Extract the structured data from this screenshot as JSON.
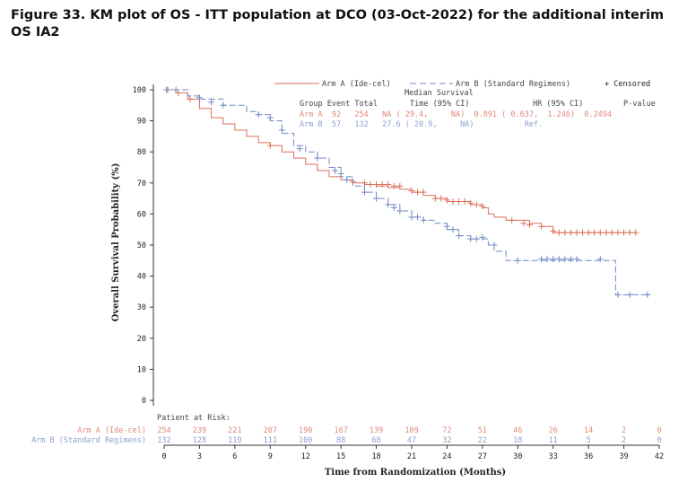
{
  "figure_title": "Figure 33. KM plot of OS - ITT population at DCO (03-Oct-2022) for the additional interim OS IA2",
  "colors": {
    "arm_a": "#d9705a",
    "arm_b": "#7189c6",
    "axis": "#333333",
    "text": "#222222"
  },
  "chart_data": {
    "type": "line",
    "subtype": "kaplan-meier",
    "title": "",
    "xlabel": "Time from Randomization (Months)",
    "ylabel": "Overall Survival Probability (%)",
    "xlim": [
      0,
      42
    ],
    "ylim": [
      0,
      100
    ],
    "x_ticks": [
      0,
      3,
      6,
      9,
      12,
      15,
      18,
      21,
      24,
      27,
      30,
      33,
      36,
      39,
      42
    ],
    "y_ticks": [
      0,
      10,
      20,
      30,
      40,
      50,
      60,
      70,
      80,
      90,
      100
    ],
    "grid": false,
    "legend_position": "top-right",
    "legend": {
      "arm_a_label": "Arm A (Ide-cel)",
      "arm_b_label": "Arm B (Standard Regimens)",
      "censored_label": "+ Censored"
    },
    "stats_table": {
      "header1": "Median Survival",
      "header2_group": "Group Event Total",
      "header2_time": "Time (95% CI)",
      "header2_hr": "HR (95% CI)",
      "header2_p": "P-value",
      "row_a": "Arm A  92   254   NA ( 29.4,     NA)  0.891 ( 0.637,  1.246)  0.2494",
      "row_b": "Arm B  57   132   27.6 ( 20.9,     NA)           Ref."
    },
    "series": [
      {
        "name": "Arm A (Ide-cel)",
        "color": "#d9705a",
        "points": [
          [
            0,
            100
          ],
          [
            1,
            99
          ],
          [
            2,
            97
          ],
          [
            3,
            94
          ],
          [
            4,
            91
          ],
          [
            5,
            89
          ],
          [
            6,
            87
          ],
          [
            7,
            85
          ],
          [
            8,
            83
          ],
          [
            9,
            82
          ],
          [
            10,
            80
          ],
          [
            11,
            78
          ],
          [
            12,
            76
          ],
          [
            13,
            74
          ],
          [
            14,
            72
          ],
          [
            15,
            71
          ],
          [
            16,
            70
          ],
          [
            17,
            69.5
          ],
          [
            18,
            69
          ],
          [
            19,
            68.5
          ],
          [
            20,
            68
          ],
          [
            21,
            67
          ],
          [
            22,
            66
          ],
          [
            23,
            65
          ],
          [
            24,
            64
          ],
          [
            25,
            64
          ],
          [
            26,
            63
          ],
          [
            27,
            62
          ],
          [
            27.5,
            60
          ],
          [
            28,
            59
          ],
          [
            29,
            58
          ],
          [
            30,
            58
          ],
          [
            31,
            57
          ],
          [
            32,
            56
          ],
          [
            33,
            54
          ],
          [
            34,
            54
          ],
          [
            35,
            54
          ],
          [
            36,
            54
          ],
          [
            37,
            54
          ],
          [
            38,
            54
          ],
          [
            39,
            54
          ],
          [
            40,
            54
          ]
        ],
        "censored": [
          [
            0.3,
            100
          ],
          [
            1.2,
            99
          ],
          [
            2.2,
            97
          ],
          [
            9,
            82
          ],
          [
            16,
            70.5
          ],
          [
            17,
            70
          ],
          [
            17.5,
            69.5
          ],
          [
            18,
            69.5
          ],
          [
            18.5,
            69.5
          ],
          [
            19,
            69.5
          ],
          [
            19.5,
            69
          ],
          [
            20,
            69
          ],
          [
            21,
            67.5
          ],
          [
            21.5,
            67
          ],
          [
            22,
            67
          ],
          [
            23,
            65
          ],
          [
            23.5,
            65
          ],
          [
            24,
            64.5
          ],
          [
            24.5,
            64
          ],
          [
            25,
            64
          ],
          [
            25.5,
            64
          ],
          [
            26,
            63.5
          ],
          [
            26.5,
            63
          ],
          [
            27,
            62.5
          ],
          [
            29.5,
            58
          ],
          [
            30.5,
            57
          ],
          [
            31,
            56.5
          ],
          [
            32,
            56
          ],
          [
            33,
            54.5
          ],
          [
            33.5,
            54
          ],
          [
            34,
            54
          ],
          [
            34.5,
            54
          ],
          [
            35,
            54
          ],
          [
            35.5,
            54
          ],
          [
            36,
            54
          ],
          [
            36.5,
            54
          ],
          [
            37,
            54
          ],
          [
            37.5,
            54
          ],
          [
            38,
            54
          ],
          [
            38.5,
            54
          ],
          [
            39,
            54
          ],
          [
            39.5,
            54
          ],
          [
            40,
            54
          ]
        ]
      },
      {
        "name": "Arm B (Standard Regimens)",
        "color": "#7189c6",
        "points": [
          [
            0,
            100
          ],
          [
            2,
            98
          ],
          [
            3,
            97
          ],
          [
            5,
            95
          ],
          [
            7,
            93
          ],
          [
            8,
            92
          ],
          [
            9,
            90
          ],
          [
            10,
            86
          ],
          [
            11,
            82
          ],
          [
            12,
            80
          ],
          [
            13,
            78
          ],
          [
            14,
            75
          ],
          [
            15,
            72
          ],
          [
            16,
            69
          ],
          [
            17,
            67
          ],
          [
            18,
            65
          ],
          [
            19,
            63
          ],
          [
            20,
            61
          ],
          [
            21,
            59
          ],
          [
            22,
            58
          ],
          [
            23,
            57
          ],
          [
            24,
            55
          ],
          [
            25,
            53
          ],
          [
            26,
            52
          ],
          [
            27,
            52
          ],
          [
            27.5,
            50
          ],
          [
            28,
            48
          ],
          [
            29,
            45
          ],
          [
            31,
            45
          ],
          [
            32,
            45
          ],
          [
            33,
            45
          ],
          [
            34,
            45
          ],
          [
            35,
            45
          ],
          [
            36,
            45
          ],
          [
            37,
            45
          ],
          [
            38,
            45
          ],
          [
            38.3,
            34
          ],
          [
            41,
            34
          ]
        ],
        "censored": [
          [
            0.2,
            100
          ],
          [
            1,
            100
          ],
          [
            3,
            97.5
          ],
          [
            4,
            96
          ],
          [
            5,
            95
          ],
          [
            8,
            92
          ],
          [
            9,
            91
          ],
          [
            10,
            87
          ],
          [
            11.5,
            81
          ],
          [
            13,
            78
          ],
          [
            14.5,
            74
          ],
          [
            15,
            73
          ],
          [
            15.5,
            71
          ],
          [
            17,
            67
          ],
          [
            18,
            65
          ],
          [
            19,
            63
          ],
          [
            19.5,
            62
          ],
          [
            20,
            61
          ],
          [
            21,
            59
          ],
          [
            21.5,
            59
          ],
          [
            22,
            58
          ],
          [
            24,
            56
          ],
          [
            24.5,
            55
          ],
          [
            25,
            53
          ],
          [
            26,
            52
          ],
          [
            26.5,
            52
          ],
          [
            27,
            52.5
          ],
          [
            28,
            50
          ],
          [
            30,
            45
          ],
          [
            32,
            45.5
          ],
          [
            32.5,
            45.5
          ],
          [
            33,
            45.5
          ],
          [
            33.5,
            45.5
          ],
          [
            34,
            45.5
          ],
          [
            34.5,
            45.5
          ],
          [
            35,
            45.5
          ],
          [
            37,
            45.5
          ],
          [
            38.5,
            34
          ],
          [
            39.5,
            34
          ],
          [
            41,
            34
          ]
        ]
      }
    ],
    "risk_table": {
      "title": "Patient at Risk:",
      "times": [
        0,
        3,
        6,
        9,
        12,
        15,
        18,
        21,
        24,
        27,
        30,
        33,
        36,
        39,
        42
      ],
      "rows": [
        {
          "label": "Arm A (Ide-cel)",
          "color": "#d9705a",
          "values": [
            "254",
            "239",
            "221",
            "207",
            "190",
            "167",
            "139",
            "109",
            "72",
            "51",
            "46",
            "26",
            "14",
            "2",
            "0"
          ]
        },
        {
          "label": "Arm B (Standard Regimens)",
          "color": "#7189c6",
          "values": [
            "132",
            "128",
            "119",
            "111",
            "100",
            "88",
            "68",
            "47",
            "32",
            "22",
            "18",
            "11",
            "5",
            "2",
            "0"
          ]
        }
      ]
    }
  }
}
